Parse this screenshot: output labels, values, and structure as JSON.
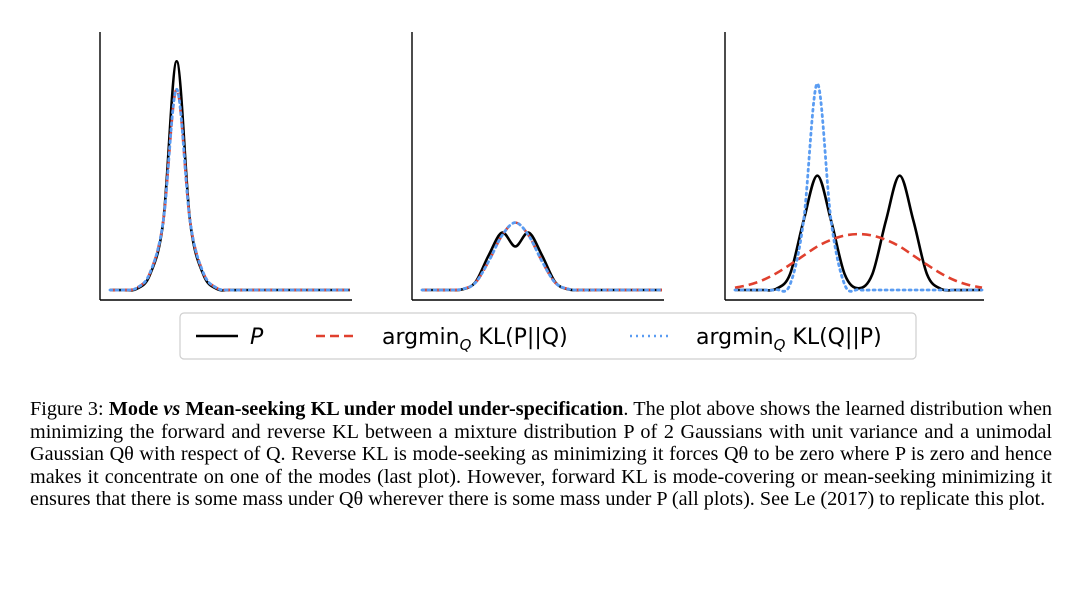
{
  "chart_data": [
    {
      "type": "line",
      "title": "",
      "xlabel": "",
      "ylabel": "",
      "xlim": [
        -5,
        13
      ],
      "ylim": [
        0,
        0.9
      ],
      "grid": false,
      "series": [
        {
          "name": "P",
          "color": "#000000",
          "style": "solid",
          "x": [
            -5,
            -4,
            -3,
            -2,
            -1,
            0,
            1,
            2,
            3,
            4,
            5,
            6,
            7,
            8,
            9,
            10,
            11,
            12,
            13
          ],
          "y": [
            0.0,
            0.0,
            0.004,
            0.054,
            0.242,
            0.798,
            0.242,
            0.054,
            0.004,
            0.0,
            0.0,
            0.0,
            0.0,
            0.0,
            0.0,
            0.0,
            0.0,
            0.0,
            0.0
          ]
        },
        {
          "name": "argmin_Q KL(P||Q)",
          "color": "#e0402e",
          "style": "dashed",
          "x": [
            -5,
            -4,
            -3,
            -2,
            -1,
            0,
            1,
            2,
            3,
            4,
            5,
            6,
            7,
            8,
            9,
            10,
            11,
            12,
            13
          ],
          "y": [
            0.0,
            0.0,
            0.007,
            0.06,
            0.242,
            0.7,
            0.242,
            0.06,
            0.007,
            0.0,
            0.0,
            0.0,
            0.0,
            0.0,
            0.0,
            0.0,
            0.0,
            0.0,
            0.0
          ]
        },
        {
          "name": "argmin_Q KL(Q||P)",
          "color": "#5a9cf2",
          "style": "dotted",
          "x": [
            -5,
            -4,
            -3,
            -2,
            -1,
            0,
            1,
            2,
            3,
            4,
            5,
            6,
            7,
            8,
            9,
            10,
            11,
            12,
            13
          ],
          "y": [
            0.0,
            0.0,
            0.007,
            0.06,
            0.242,
            0.7,
            0.242,
            0.06,
            0.007,
            0.0,
            0.0,
            0.0,
            0.0,
            0.0,
            0.0,
            0.0,
            0.0,
            0.0,
            0.0
          ]
        }
      ]
    },
    {
      "type": "line",
      "title": "",
      "xlabel": "",
      "ylabel": "",
      "xlim": [
        -5,
        13
      ],
      "ylim": [
        0,
        0.9
      ],
      "grid": false,
      "series": [
        {
          "name": "P",
          "color": "#000000",
          "style": "solid",
          "x": [
            -5,
            -4,
            -3,
            -2,
            -1,
            0,
            1,
            2,
            3,
            4,
            5,
            6,
            7,
            8,
            9,
            10,
            11,
            12,
            13
          ],
          "y": [
            0.0,
            0.0,
            0.0,
            0.002,
            0.027,
            0.121,
            0.2,
            0.152,
            0.2,
            0.121,
            0.027,
            0.002,
            0.0,
            0.0,
            0.0,
            0.0,
            0.0,
            0.0,
            0.0
          ]
        },
        {
          "name": "argmin_Q KL(P||Q)",
          "color": "#e0402e",
          "style": "dashed",
          "x": [
            -5,
            -4,
            -3,
            -2,
            -1,
            0,
            1,
            2,
            3,
            4,
            5,
            6,
            7,
            8,
            9,
            10,
            11,
            12,
            13
          ],
          "y": [
            0.0,
            0.0,
            0.0,
            0.003,
            0.025,
            0.1,
            0.19,
            0.235,
            0.19,
            0.1,
            0.025,
            0.003,
            0.0,
            0.0,
            0.0,
            0.0,
            0.0,
            0.0,
            0.0
          ]
        },
        {
          "name": "argmin_Q KL(Q||P)",
          "color": "#5a9cf2",
          "style": "dotted",
          "x": [
            -5,
            -4,
            -3,
            -2,
            -1,
            0,
            1,
            2,
            3,
            4,
            5,
            6,
            7,
            8,
            9,
            10,
            11,
            12,
            13
          ],
          "y": [
            0.0,
            0.0,
            0.0,
            0.003,
            0.025,
            0.1,
            0.19,
            0.235,
            0.19,
            0.1,
            0.025,
            0.003,
            0.0,
            0.0,
            0.0,
            0.0,
            0.0,
            0.0,
            0.0
          ]
        }
      ]
    },
    {
      "type": "line",
      "title": "",
      "xlabel": "",
      "ylabel": "",
      "xlim": [
        -5,
        13
      ],
      "ylim": [
        0,
        0.9
      ],
      "grid": false,
      "series": [
        {
          "name": "P",
          "color": "#000000",
          "style": "solid",
          "x": [
            -5,
            -4,
            -3,
            -2,
            -1,
            0,
            1,
            2,
            3,
            4,
            5,
            6,
            7,
            8,
            9,
            10,
            11,
            12,
            13
          ],
          "y": [
            0.0,
            0.0,
            0.0,
            0.004,
            0.054,
            0.242,
            0.399,
            0.242,
            0.054,
            0.006,
            0.054,
            0.242,
            0.399,
            0.242,
            0.054,
            0.004,
            0.0,
            0.0,
            0.0
          ]
        },
        {
          "name": "argmin_Q KL(P||Q)",
          "color": "#e0402e",
          "style": "dashed",
          "x": [
            -5,
            -4,
            -3,
            -2,
            -1,
            0,
            1,
            2,
            3,
            4,
            5,
            6,
            7,
            8,
            9,
            10,
            11,
            12,
            13
          ],
          "y": [
            0.008,
            0.018,
            0.034,
            0.058,
            0.088,
            0.12,
            0.152,
            0.175,
            0.19,
            0.195,
            0.19,
            0.175,
            0.152,
            0.12,
            0.088,
            0.058,
            0.034,
            0.018,
            0.008
          ]
        },
        {
          "name": "argmin_Q KL(Q||P)",
          "color": "#5a9cf2",
          "style": "dotted",
          "x": [
            -5,
            -4,
            -3,
            -2,
            -1,
            0,
            1,
            2,
            3,
            4,
            5,
            6,
            7,
            8,
            9,
            10,
            11,
            12,
            13
          ],
          "y": [
            0.0,
            0.0,
            0.0,
            0.001,
            0.018,
            0.242,
            0.72,
            0.242,
            0.018,
            0.001,
            0.0,
            0.0,
            0.0,
            0.0,
            0.0,
            0.0,
            0.0,
            0.0,
            0.0
          ]
        }
      ]
    }
  ],
  "legend": {
    "entries": [
      {
        "name": "P",
        "main": "P",
        "sub": "",
        "rest": ""
      },
      {
        "name": "argmin_Q KL(P||Q)",
        "main": "argmin",
        "sub": "Q",
        "rest": " KL(P||Q)"
      },
      {
        "name": "argmin_Q KL(Q||P)",
        "main": "argmin",
        "sub": "Q",
        "rest": " KL(Q||P)"
      }
    ]
  },
  "caption": {
    "label": "Figure 3:",
    "bold_part1": "Mode",
    "bold_italic": "vs",
    "bold_part2": "Mean-seeking KL under model under-specification",
    "text": ". The plot above shows the learned distribution when minimizing the forward and reverse KL between a mixture distribution P of 2 Gaussians with unit variance and a unimodal Gaussian Qθ with respect of Q. Reverse KL is mode-seeking as minimizing it forces Qθ to be zero where P is zero and hence makes it concentrate on one of the modes (last plot). However, forward KL is mode-covering or mean-seeking minimizing it ensures that there is some mass under Qθ wherever there is some mass under P (all plots). See Le (2017) to replicate this plot."
  },
  "colors": {
    "P": "#000000",
    "forward": "#e0402e",
    "reverse": "#5a9cf2"
  }
}
